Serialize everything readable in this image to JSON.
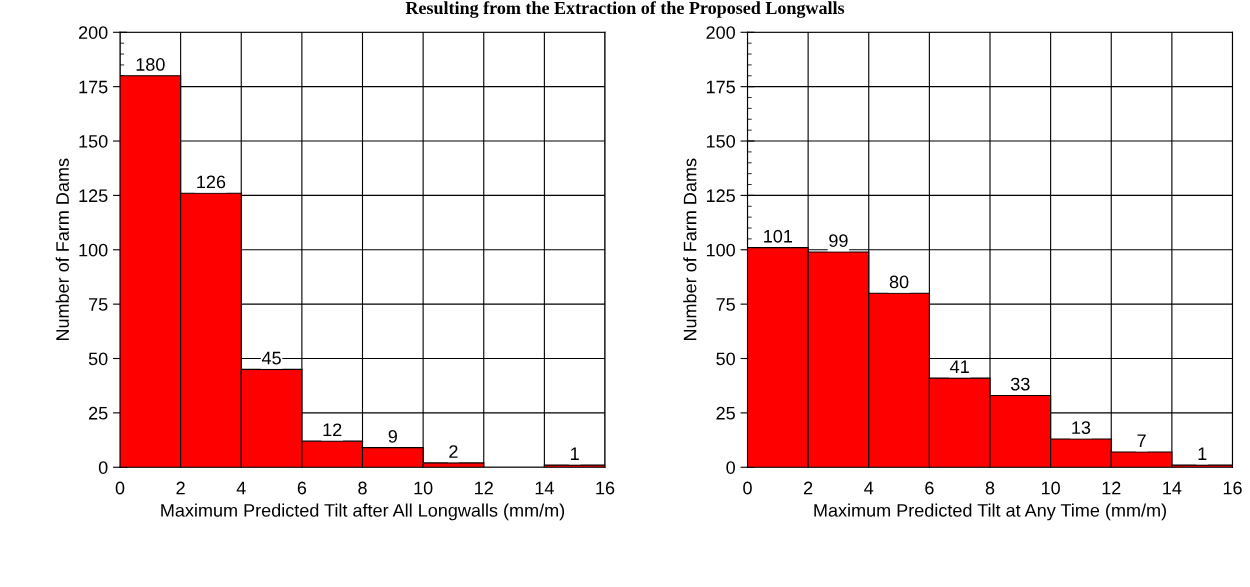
{
  "chart_data": [
    {
      "type": "histogram",
      "title": "Resulting from the Extraction of the Proposed Longwalls",
      "xlabel": "Maximum Predicted Tilt after All Longwalls (mm/m)",
      "ylabel": "Number of Farm Dams",
      "bins": [
        0,
        2,
        4,
        6,
        8,
        10,
        12,
        14,
        16
      ],
      "values": [
        180,
        126,
        45,
        12,
        9,
        2,
        0,
        1
      ],
      "value_labels": [
        "180",
        "126",
        "45",
        "12",
        "9",
        "2",
        null,
        "1"
      ],
      "color": "#ff0000",
      "xlim": [
        0,
        16
      ],
      "xticks": [
        0,
        2,
        4,
        6,
        8,
        10,
        12,
        14,
        16
      ],
      "ylim": [
        0,
        200
      ],
      "yticks": [
        0,
        25,
        50,
        75,
        100,
        125,
        150,
        175,
        200
      ],
      "grid": true
    },
    {
      "type": "histogram",
      "xlabel": "Maximum Predicted Tilt at Any Time (mm/m)",
      "ylabel": "Number of Farm Dams",
      "bins": [
        0,
        2,
        4,
        6,
        8,
        10,
        12,
        14,
        16
      ],
      "values": [
        101,
        99,
        80,
        41,
        33,
        13,
        7,
        1
      ],
      "data_labels": true,
      "color": "#ff0000",
      "xlim": [
        0,
        16
      ],
      "xticks": [
        0,
        2,
        4,
        6,
        8,
        10,
        12,
        14,
        16
      ],
      "ylim": [
        0,
        200
      ],
      "yticks": [
        0,
        25,
        50,
        75,
        100,
        125,
        150,
        175,
        200
      ],
      "grid": true
    }
  ]
}
